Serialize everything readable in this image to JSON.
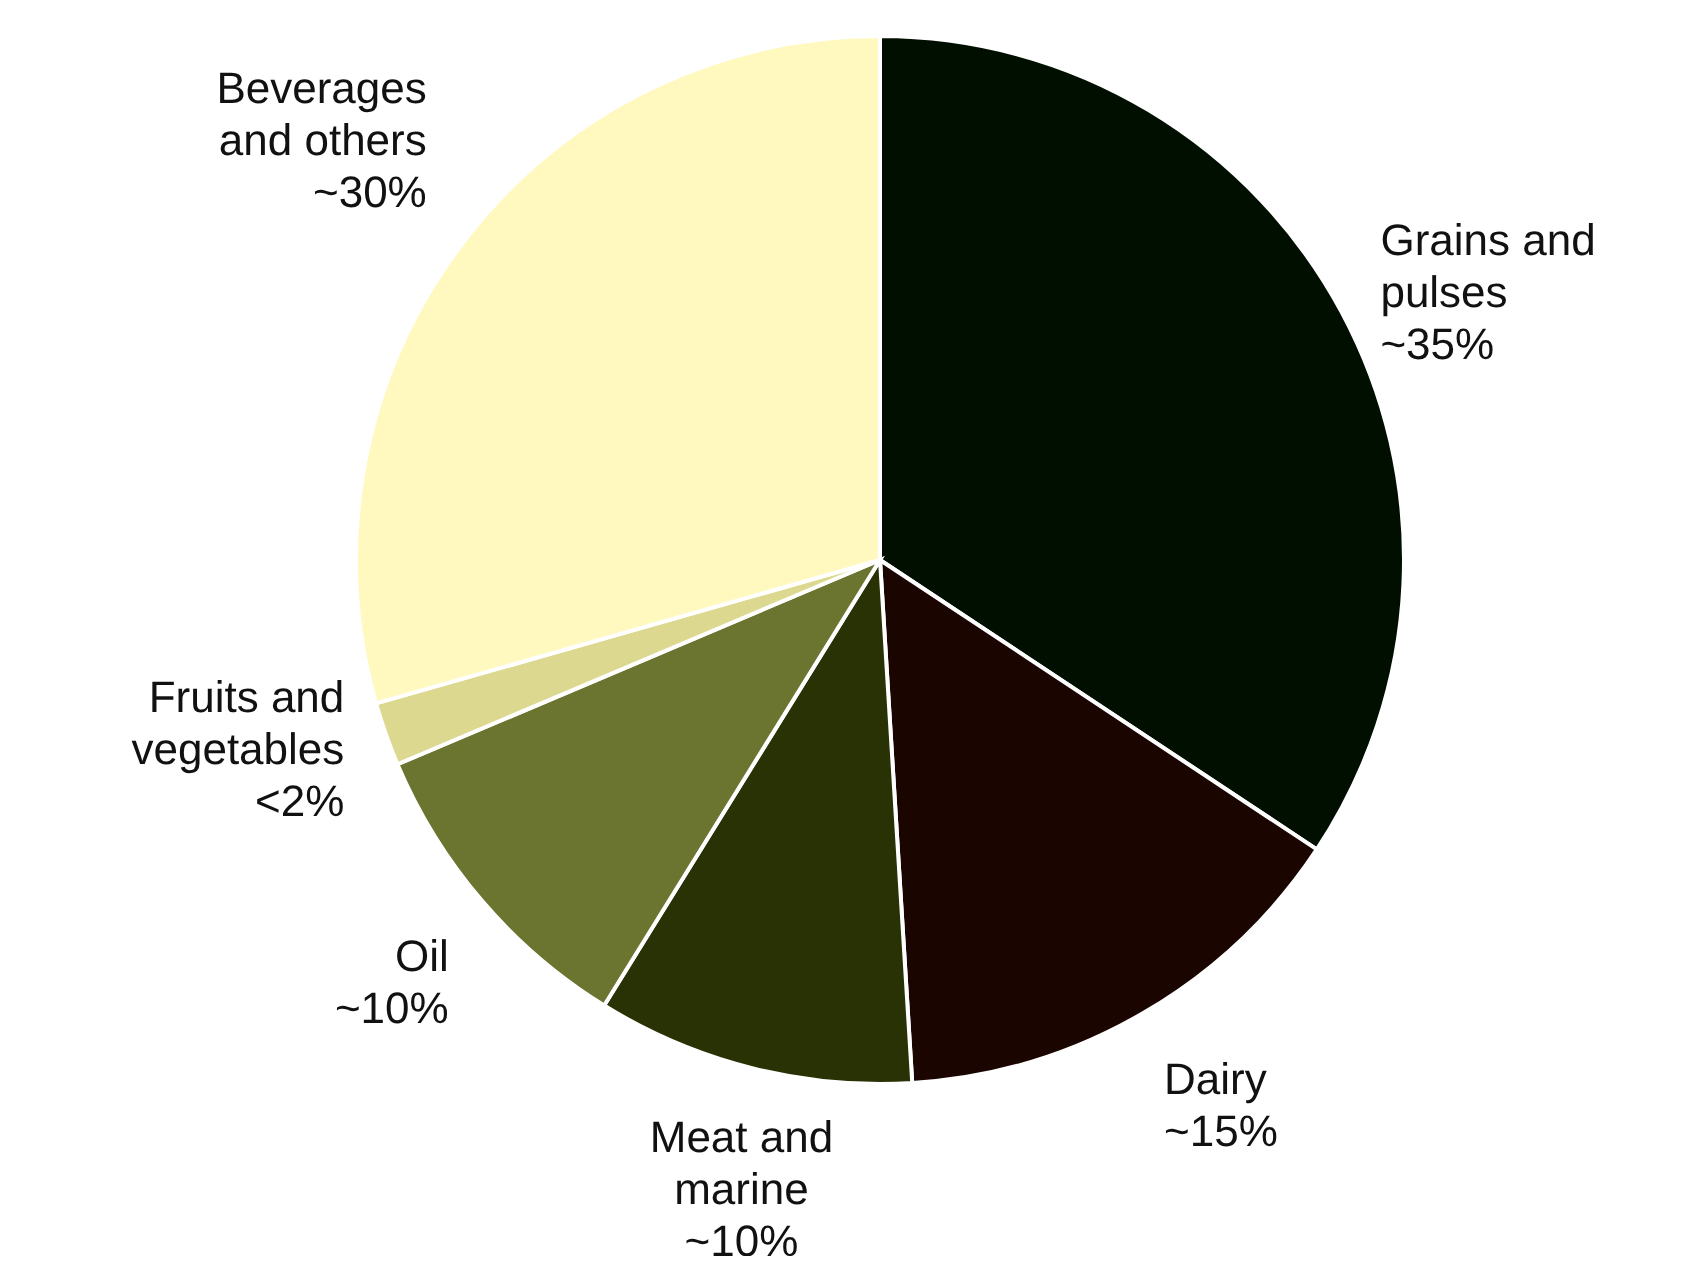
{
  "chart_data": {
    "type": "pie",
    "categories": [
      "Grains and pulses",
      "Dairy",
      "Meat and marine",
      "Oil",
      "Fruits and vegetables",
      "Beverages and others"
    ],
    "values": [
      35,
      15,
      10,
      10,
      2,
      30
    ],
    "value_labels": [
      "~35%",
      "~15%",
      "~10%",
      "~10%",
      "<2%",
      "~30%"
    ],
    "colors": [
      "#000f00",
      "#1a0500",
      "#283205",
      "#6b7530",
      "#ddd890",
      "#fff9c0"
    ]
  }
}
